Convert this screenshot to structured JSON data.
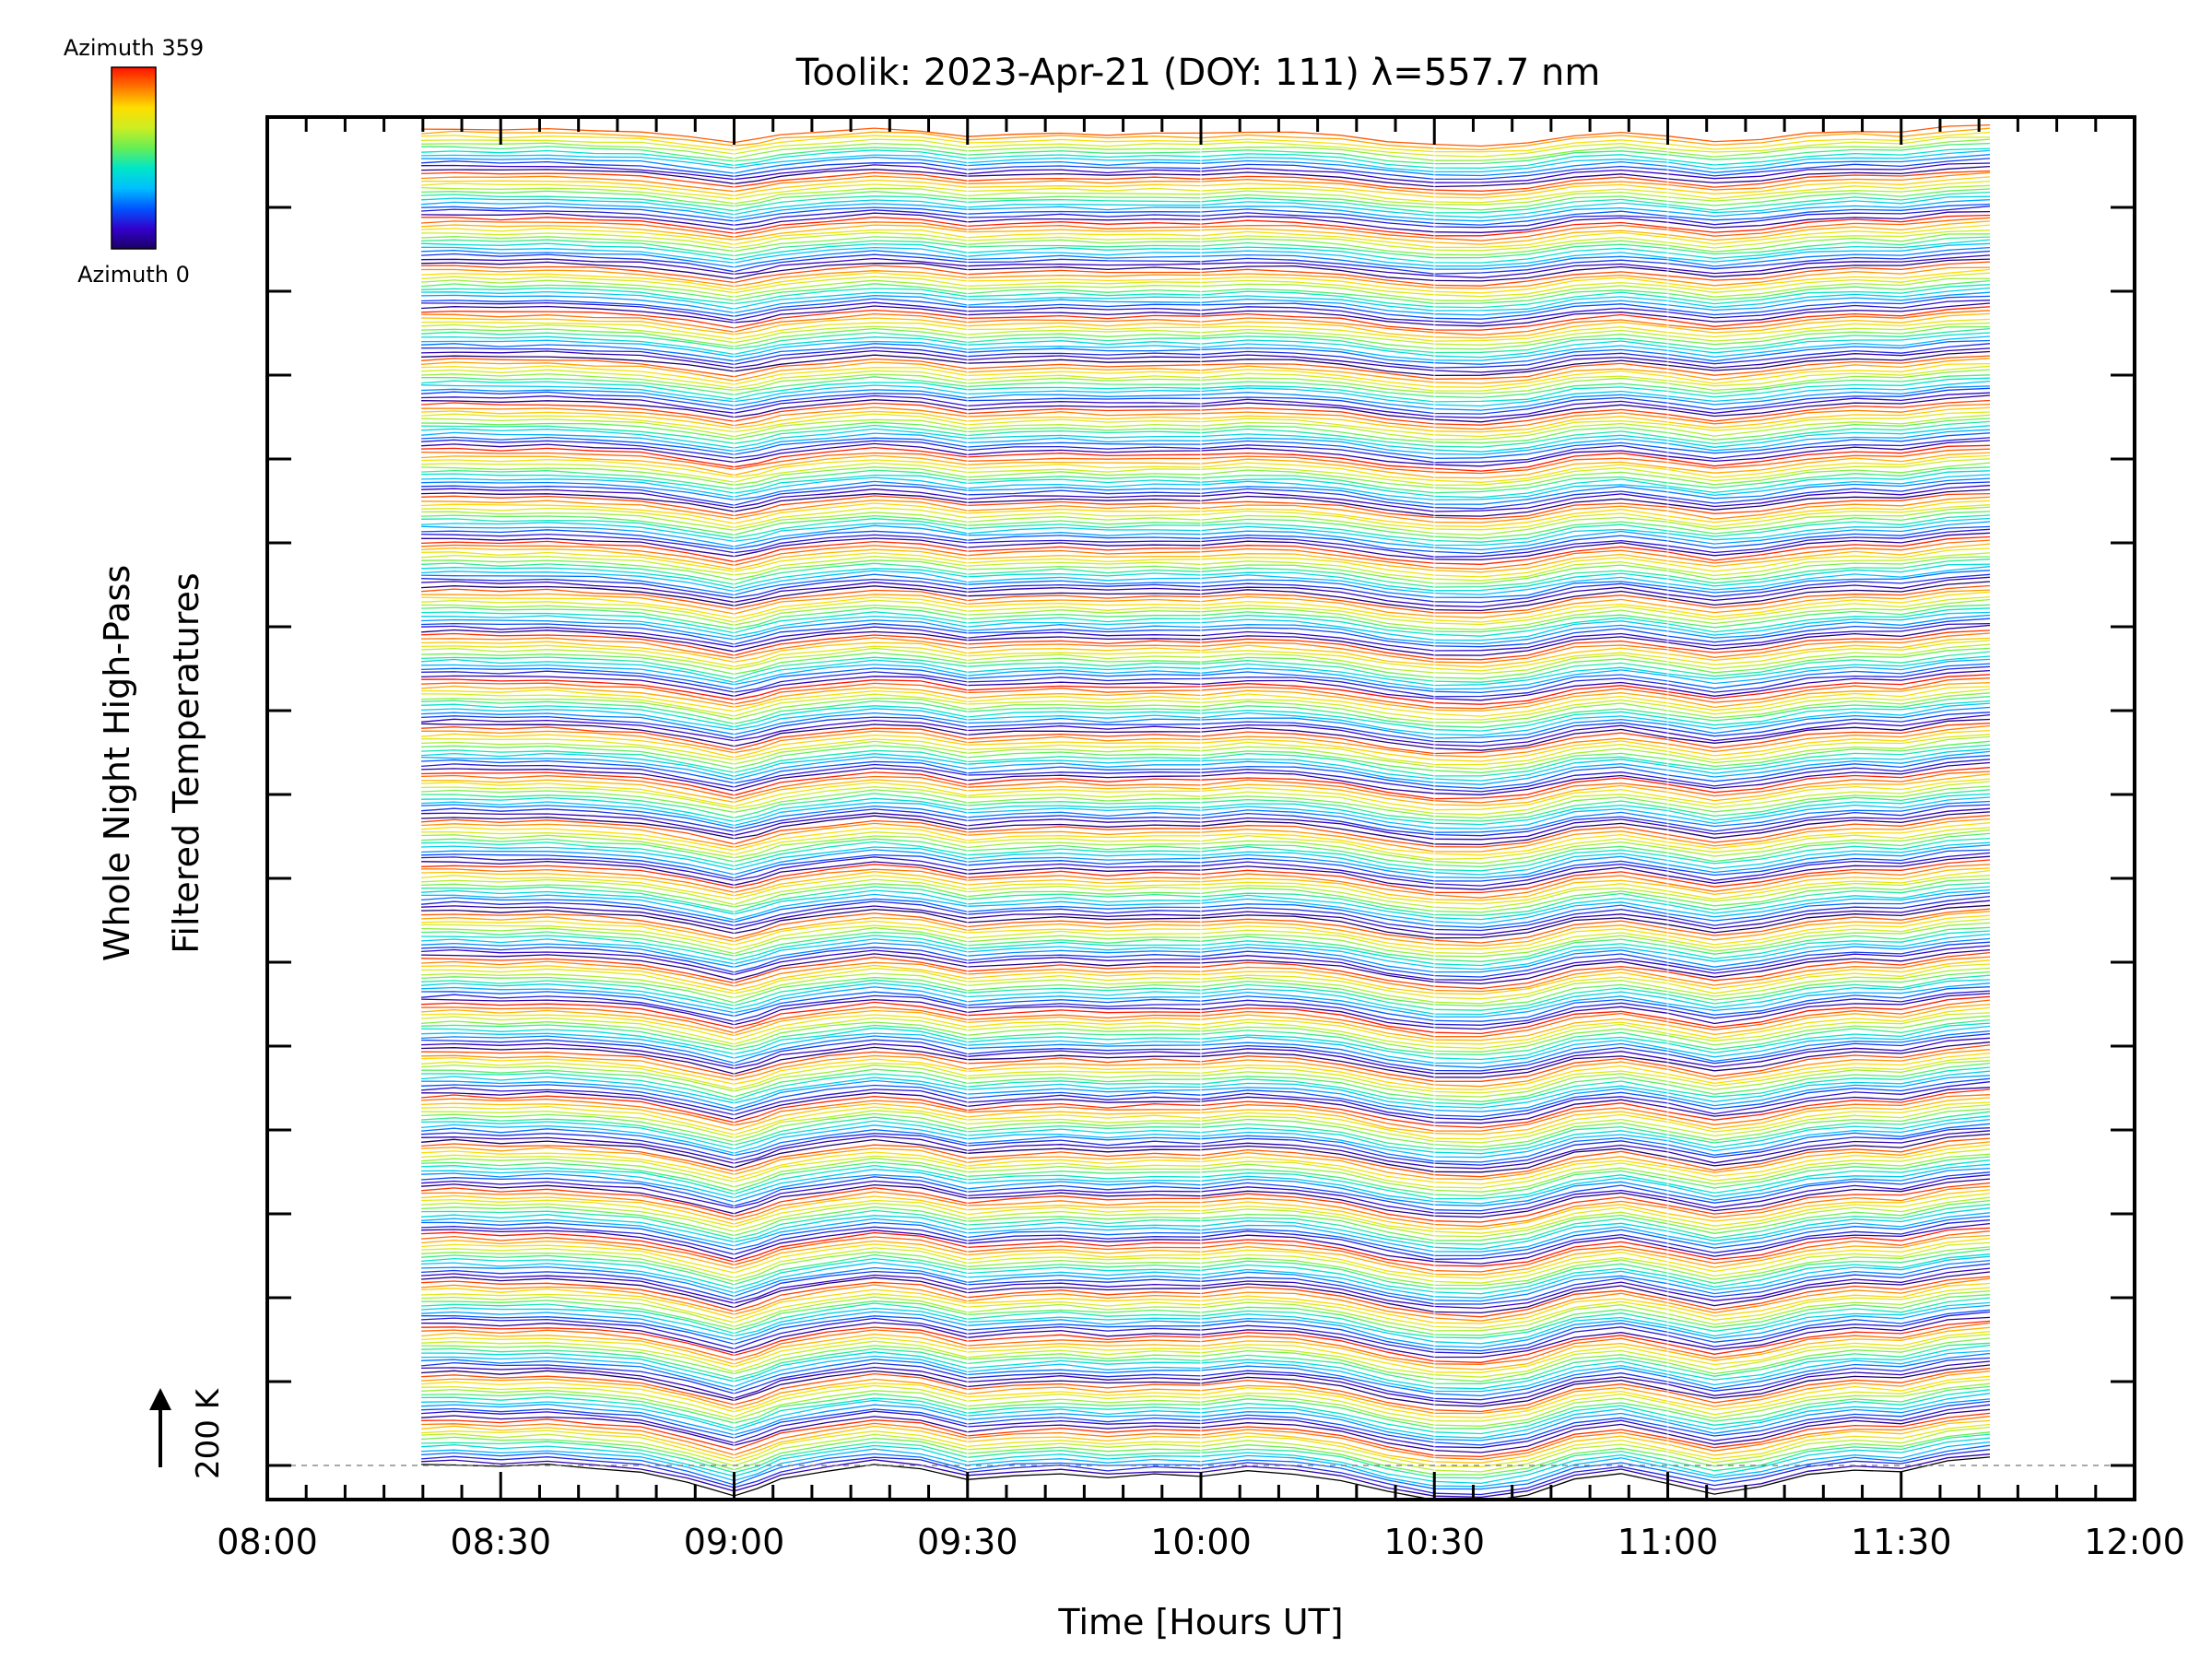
{
  "chart_data": {
    "type": "line",
    "title": "Toolik: 2023-Apr-21 (DOY: 111) λ=557.7 nm",
    "xlabel": "Time [Hours UT]",
    "ylabel_line1": "Whole Night High-Pass",
    "ylabel_line2": "Filtered Temperatures",
    "x_unit": "hours UT",
    "xlim": [
      8.0,
      12.0
    ],
    "x_ticks": [
      8.0,
      8.5,
      9.0,
      9.5,
      10.0,
      10.5,
      11.0,
      11.5,
      12.0
    ],
    "x_tick_labels": [
      "08:00",
      "08:30",
      "09:00",
      "09:30",
      "10:00",
      "10:30",
      "11:00",
      "11:30",
      "12:00"
    ],
    "data_x_range": [
      8.33,
      11.69
    ],
    "grid": false,
    "colorbar": {
      "top_label": "Azimuth 359",
      "bottom_label": "Azimuth 0",
      "colormap": [
        "#1a0066",
        "#3300cc",
        "#0055ff",
        "#00bfff",
        "#00e6c8",
        "#66ee55",
        "#ccee22",
        "#ffdd00",
        "#ff7700",
        "#ff1100"
      ]
    },
    "scale_bar": {
      "label": "200 K"
    },
    "series_description": "Stacked whole-night high-pass filtered temperature traces, one per azimuth (0 to 359), each offset vertically and colored by azimuth.",
    "common_profile": {
      "x": [
        8.33,
        8.4,
        8.5,
        8.6,
        8.7,
        8.8,
        8.9,
        9.0,
        9.05,
        9.1,
        9.2,
        9.3,
        9.4,
        9.5,
        9.6,
        9.7,
        9.8,
        9.9,
        10.0,
        10.1,
        10.2,
        10.3,
        10.4,
        10.5,
        10.6,
        10.7,
        10.8,
        10.9,
        11.0,
        11.1,
        11.2,
        11.3,
        11.4,
        11.5,
        11.6,
        11.69
      ],
      "y": [
        0.0,
        0.2,
        -0.2,
        0.1,
        -0.4,
        -1.0,
        -2.6,
        -4.5,
        -3.4,
        -2.0,
        -0.8,
        0.2,
        -0.4,
        -2.2,
        -1.6,
        -1.2,
        -1.8,
        -1.4,
        -1.6,
        -0.8,
        -1.2,
        -2.2,
        -4.0,
        -5.2,
        -5.4,
        -4.4,
        -2.0,
        -1.2,
        -2.6,
        -4.2,
        -3.2,
        -1.4,
        -0.6,
        -1.0,
        0.6,
        1.2
      ]
    },
    "num_traces": 360
  }
}
